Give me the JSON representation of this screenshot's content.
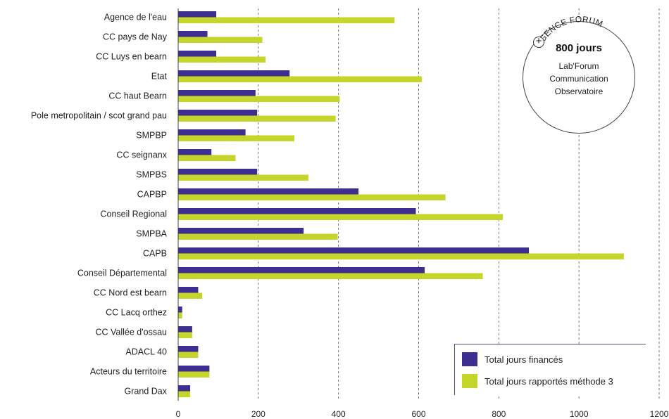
{
  "chart_data": {
    "type": "bar",
    "orientation": "horizontal",
    "categories": [
      "Agence de l'eau",
      "CC pays de Nay",
      "CC Luys en bearn",
      "Etat",
      "CC haut Bearn",
      "Pole metropolitain / scot grand pau",
      "SMPBP",
      "CC seignanx",
      "SMPBS",
      "CAPBP",
      "Conseil Regional",
      "SMPBA",
      "CAPB",
      "Conseil Départemental",
      "CC Nord est bearn",
      "CC Lacq orthez",
      "CC Vallée d'ossau",
      "ADACL 40",
      "Acteurs du territoire",
      "Grand Dax"
    ],
    "series": [
      {
        "name": "Total jours financés",
        "color": "#3d2e8f",
        "values": [
          95,
          73,
          95,
          278,
          193,
          197,
          168,
          83,
          197,
          450,
          593,
          313,
          875,
          615,
          50,
          10,
          35,
          50,
          78,
          30
        ]
      },
      {
        "name": "Total jours rapportés méthode 3",
        "color": "#c5d52a",
        "values": [
          540,
          210,
          218,
          608,
          403,
          393,
          290,
          143,
          325,
          667,
          810,
          398,
          1112,
          760,
          60,
          10,
          35,
          50,
          78,
          30
        ]
      }
    ],
    "xlim": [
      0,
      1200
    ],
    "xticks": [
      "0",
      "200",
      "400",
      "600",
      "800",
      "1000",
      "1200"
    ],
    "grid": "vertical dashed",
    "legend_position": "bottom-right"
  },
  "badge": {
    "arc_text": "AGENCE FORUM",
    "plus_icon": "plus-circle-icon",
    "main": "800 jours",
    "lines": [
      "Lab'Forum",
      "Communication",
      "Observatoire"
    ]
  },
  "legend": {
    "items": [
      {
        "label": "Total jours financés",
        "color": "#3d2e8f"
      },
      {
        "label": "Total jours rapportés méthode 3",
        "color": "#c5d52a"
      }
    ]
  }
}
